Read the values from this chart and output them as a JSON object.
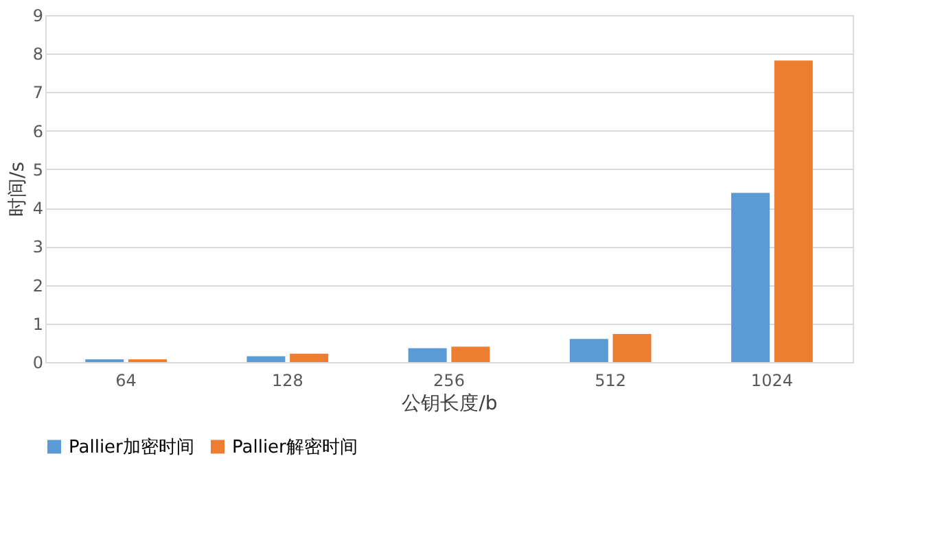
{
  "chart_data": {
    "type": "bar",
    "xlabel": "公钥长度/b",
    "ylabel": "时间/s",
    "categories": [
      "64",
      "128",
      "256",
      "512",
      "1024"
    ],
    "series": [
      {
        "name": "Pallier加密时间",
        "color": "#5b9bd5",
        "values": [
          0.07,
          0.15,
          0.36,
          0.6,
          4.39
        ]
      },
      {
        "name": "Pallier解密时间",
        "color": "#ed7d31",
        "values": [
          0.07,
          0.22,
          0.4,
          0.73,
          7.82
        ]
      }
    ],
    "ylim": [
      0,
      9
    ],
    "yticks": [
      0,
      1,
      2,
      3,
      4,
      5,
      6,
      7,
      8,
      9
    ],
    "grid": "y",
    "legend": "bottom"
  }
}
